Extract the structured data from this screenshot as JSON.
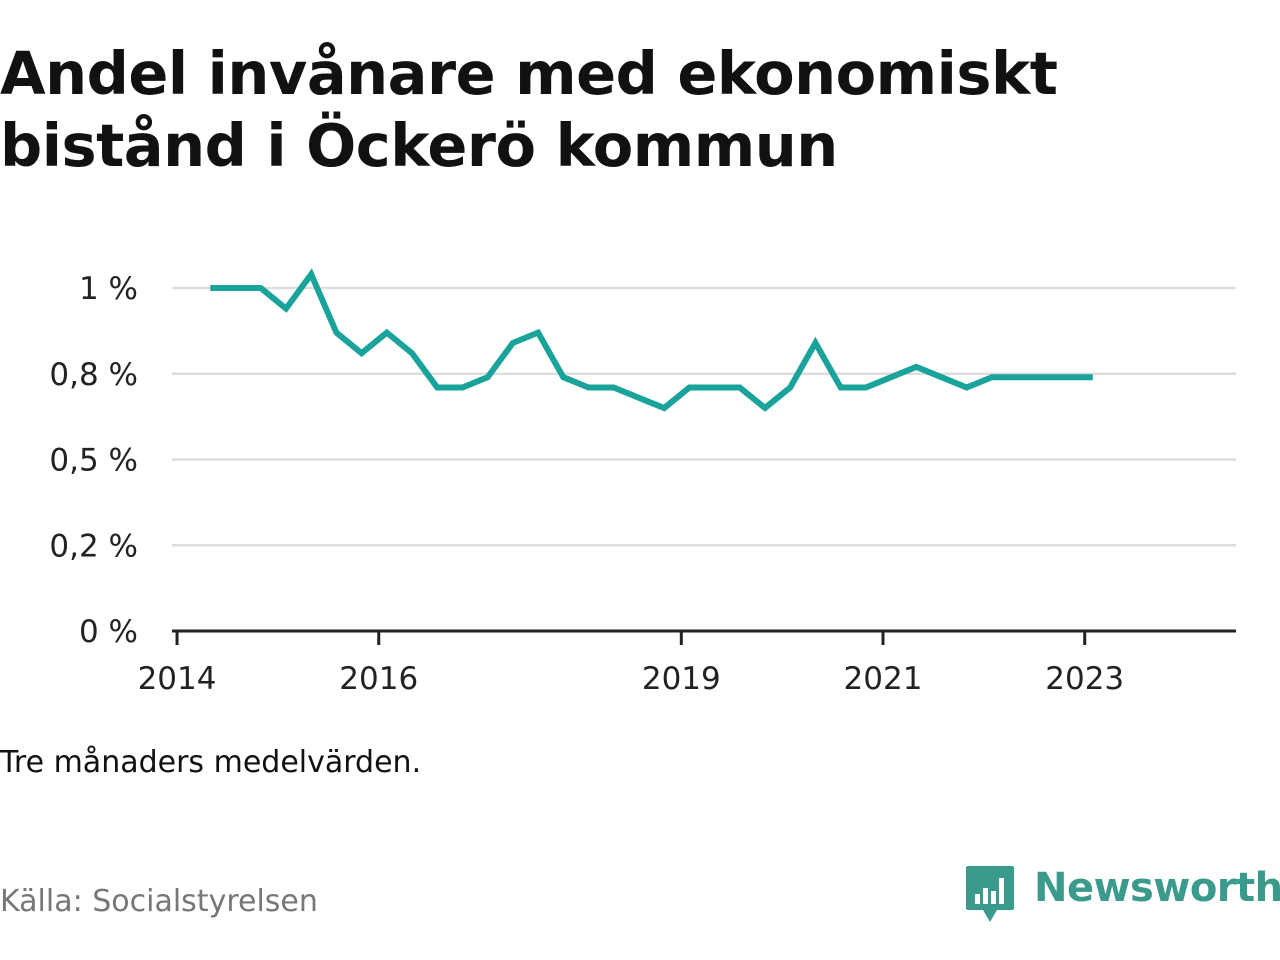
{
  "title": "Andel invånare med ekonomiskt bistånd i Öckerö kommun",
  "note": "Tre månaders medelvärden.",
  "source": "Källa: Socialstyrelsen",
  "logo": {
    "text": "Newsworthy",
    "icon": "newsworthy-logo-icon",
    "color": "#3a9a8c"
  },
  "colors": {
    "line": "#1aa39a",
    "grid": "#dddddd",
    "axis": "#222222"
  },
  "chart_data": {
    "type": "line",
    "title": "Andel invånare med ekonomiskt bistånd i Öckerö kommun",
    "xlabel": "",
    "ylabel": "",
    "y_tick_labels": [
      "0 %",
      "0,2 %",
      "0,5 %",
      "0,8 %",
      "1 %"
    ],
    "y_ticks": [
      0,
      0.25,
      0.5,
      0.75,
      1.0
    ],
    "x_tick_labels": [
      "2014",
      "2016",
      "2019",
      "2021",
      "2023"
    ],
    "x_ticks": [
      2014.0,
      2016.0,
      2019.0,
      2021.0,
      2023.0
    ],
    "xlim": [
      2013.95,
      2024.5
    ],
    "ylim": [
      0,
      1.0
    ],
    "grid": true,
    "legend": "none",
    "series": [
      {
        "x": [
          2014.33,
          2014.58,
          2014.83,
          2015.08,
          2015.33,
          2015.58,
          2015.83,
          2016.08,
          2016.33,
          2016.58,
          2016.83,
          2017.08,
          2017.33,
          2017.58,
          2017.83,
          2018.08,
          2018.33,
          2018.58,
          2018.83,
          2019.08,
          2019.33,
          2019.58,
          2019.83,
          2020.08,
          2020.33,
          2020.58,
          2020.83,
          2021.08,
          2021.33,
          2021.58,
          2021.83,
          2022.08,
          2022.33,
          2022.58,
          2022.83,
          2023.08
        ],
        "values": [
          1.0,
          1.0,
          1.0,
          0.94,
          1.04,
          0.87,
          0.81,
          0.87,
          0.81,
          0.71,
          0.71,
          0.74,
          0.84,
          0.87,
          0.74,
          0.71,
          0.71,
          0.68,
          0.65,
          0.71,
          0.71,
          0.71,
          0.65,
          0.71,
          0.84,
          0.71,
          0.71,
          0.74,
          0.77,
          0.74,
          0.71,
          0.74,
          0.74,
          0.74,
          0.74,
          0.74
        ]
      }
    ]
  }
}
